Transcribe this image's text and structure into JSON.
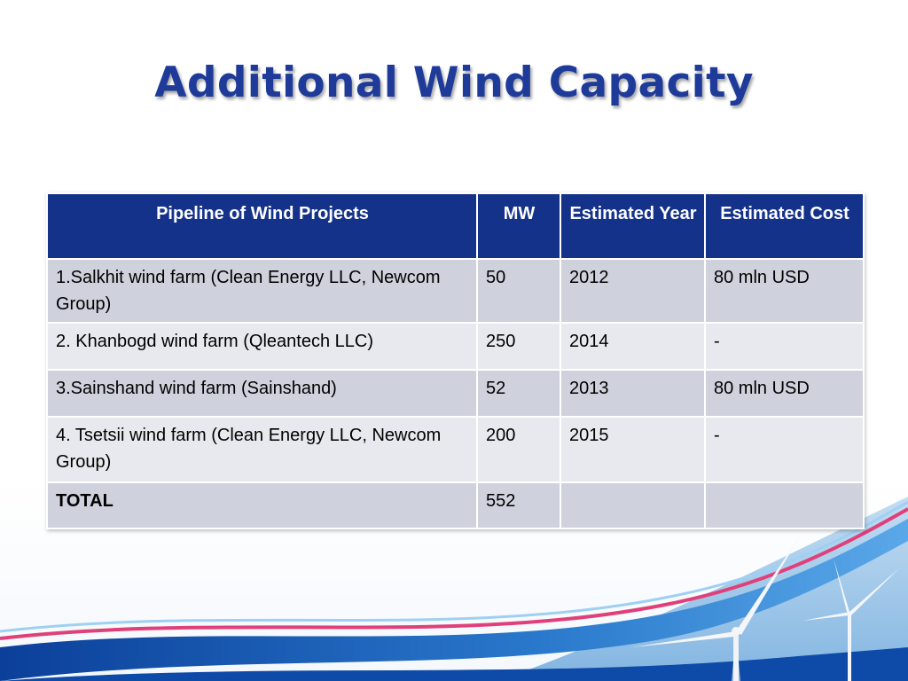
{
  "slide": {
    "title": "Additional Wind Capacity"
  },
  "table": {
    "headers": [
      "Pipeline of Wind Projects",
      "MW",
      "Estimated Year",
      "Estimated Cost"
    ],
    "rows": [
      [
        "1.Salkhit  wind farm (Clean Energy LLC, Newcom Group)",
        "50",
        "2012",
        "80 mln USD"
      ],
      [
        "2. Khanbogd  wind farm (Qleantech LLC)",
        "250",
        "2014",
        "-"
      ],
      [
        "3.Sainshand wind farm (Sainshand)",
        "52",
        "2013",
        "80 mln USD"
      ],
      [
        "4. Tsetsii wind farm (Clean Energy LLC, Newcom Group)",
        "200",
        "2015",
        "-"
      ],
      [
        "TOTAL",
        "552",
        "",
        ""
      ]
    ]
  },
  "colors": {
    "title": "#1f3b9a",
    "header_bg": "#14328a",
    "row_dark": "#cfd1dc",
    "row_light": "#e8e9ee",
    "swoosh_blue": "#1a5fb4",
    "swoosh_pink": "#e0407a"
  },
  "decor": {
    "background_image": "wind-turbines-and-swoosh"
  }
}
